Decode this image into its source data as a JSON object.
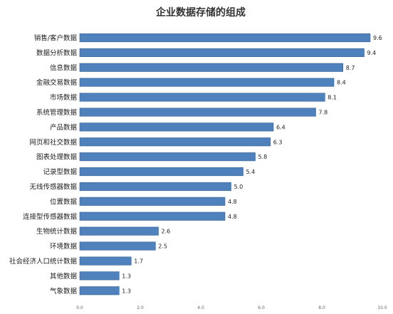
{
  "chart_data": {
    "type": "bar",
    "orientation": "horizontal",
    "title": "企业数据存储的组成",
    "categories": [
      "销售/客户数据",
      "数据分析数据",
      "信息数据",
      "金融交易数据",
      "市场数据",
      "系统管理数据",
      "产品数据",
      "网页和社交数据",
      "图表处理数据",
      "记录型数据",
      "无线传感器数据",
      "位置数据",
      "连接型传感器数据",
      "生物统计数据",
      "环境数据",
      "社会经济人口统计数据",
      "其他数据",
      "气象数据"
    ],
    "values": [
      9.6,
      9.4,
      8.7,
      8.4,
      8.1,
      7.8,
      6.4,
      6.3,
      5.8,
      5.4,
      5.0,
      4.8,
      4.8,
      2.6,
      2.5,
      1.7,
      1.3,
      1.3
    ],
    "value_labels": [
      "9.6",
      "9.4",
      "8.7",
      "8.4",
      "8.1",
      "7.8",
      "6.4",
      "6.3",
      "5.8",
      "5.4",
      "5.0",
      "4.8",
      "4.8",
      "2.6",
      "2.5",
      "1.7",
      "1.3",
      "1.3"
    ],
    "xticks": [
      "0.0",
      "2.0",
      "4.0",
      "6.0",
      "8.0",
      "10.0"
    ],
    "xlim": [
      0,
      10
    ],
    "grid": false,
    "bar_color": "#4f81bd",
    "bar_border_color": "#3a6291",
    "title_color": "#333333"
  }
}
